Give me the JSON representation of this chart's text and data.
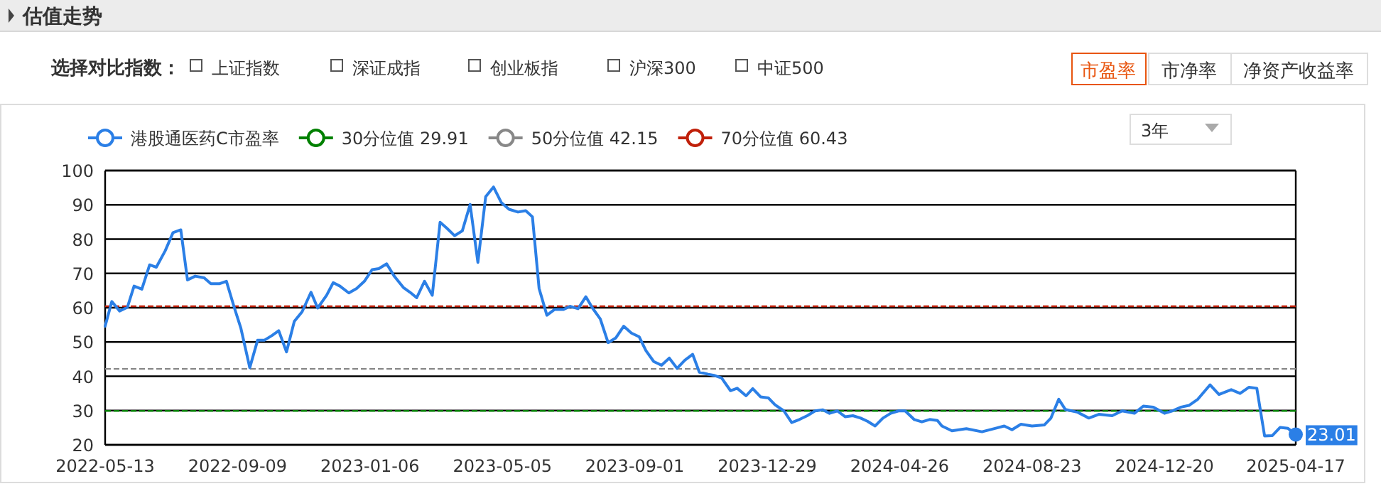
{
  "chart_data": {
    "type": "line",
    "title": "估值走势",
    "annotations": [
      "选择对比指数：",
      "上证指数",
      "深证成指",
      "创业板指",
      "沪深300",
      "中证500",
      "市盈率",
      "市净率",
      "净资产收益率",
      "3年"
    ],
    "x": [
      "2022-05-13",
      "2022-05-19",
      "2022-05-26",
      "2022-06-02",
      "2022-06-08",
      "2022-06-15",
      "2022-06-22",
      "2022-06-28",
      "2022-07-06",
      "2022-07-13",
      "2022-07-20",
      "2022-07-26",
      "2022-08-02",
      "2022-08-10",
      "2022-08-16",
      "2022-08-24",
      "2022-08-30",
      "2022-09-06",
      "2022-09-12",
      "2022-09-20",
      "2022-09-27",
      "2022-10-03",
      "2022-10-10",
      "2022-10-16",
      "2022-10-23",
      "2022-10-30",
      "2022-11-06",
      "2022-11-14",
      "2022-11-20",
      "2022-11-28",
      "2022-12-04",
      "2022-12-10",
      "2022-12-18",
      "2022-12-25",
      "2023-01-01",
      "2023-01-08",
      "2023-01-14",
      "2023-01-21",
      "2023-01-28",
      "2023-02-05",
      "2023-02-11",
      "2023-02-17",
      "2023-02-24",
      "2023-03-03",
      "2023-03-10",
      "2023-03-16",
      "2023-03-23",
      "2023-03-30",
      "2023-04-06",
      "2023-04-13",
      "2023-04-20",
      "2023-04-27",
      "2023-05-04",
      "2023-05-11",
      "2023-05-19",
      "2023-05-26",
      "2023-06-01",
      "2023-06-07",
      "2023-06-14",
      "2023-06-21",
      "2023-06-29",
      "2023-07-05",
      "2023-07-12",
      "2023-07-19",
      "2023-07-25",
      "2023-08-01",
      "2023-08-08",
      "2023-08-15",
      "2023-08-22",
      "2023-08-29",
      "2023-09-05",
      "2023-09-11",
      "2023-09-18",
      "2023-09-25",
      "2023-10-02",
      "2023-10-09",
      "2023-10-16",
      "2023-10-23",
      "2023-10-29",
      "2023-11-06",
      "2023-11-12",
      "2023-11-18",
      "2023-11-26",
      "2023-12-02",
      "2023-12-10",
      "2023-12-16",
      "2023-12-23",
      "2023-12-30",
      "2024-01-05",
      "2024-01-13",
      "2024-01-20",
      "2024-01-27",
      "2024-02-03",
      "2024-02-10",
      "2024-02-17",
      "2024-02-23",
      "2024-03-01",
      "2024-03-08",
      "2024-03-15",
      "2024-03-22",
      "2024-03-28",
      "2024-04-04",
      "2024-04-11",
      "2024-04-18",
      "2024-04-25",
      "2024-05-01",
      "2024-05-09",
      "2024-05-16",
      "2024-05-23",
      "2024-05-30",
      "2024-06-03",
      "2024-06-12",
      "2024-06-25",
      "2024-07-09",
      "2024-07-22",
      "2024-07-29",
      "2024-08-05",
      "2024-08-13",
      "2024-08-23",
      "2024-09-03",
      "2024-09-09",
      "2024-09-16",
      "2024-09-22",
      "2024-10-03",
      "2024-10-13",
      "2024-10-22",
      "2024-11-03",
      "2024-11-12",
      "2024-11-23",
      "2024-12-01",
      "2024-12-10",
      "2024-12-20",
      "2024-12-27",
      "2025-01-04",
      "2025-01-11",
      "2025-01-19",
      "2025-01-30",
      "2025-02-07",
      "2025-02-18",
      "2025-02-26",
      "2025-03-06",
      "2025-03-13",
      "2025-03-20",
      "2025-03-27",
      "2025-04-03",
      "2025-04-10",
      "2025-04-17"
    ],
    "series": [
      {
        "name": "港股通医药C市盈率",
        "color": "#2b7fe6",
        "values": [
          54.6,
          61.8,
          59.0,
          60.1,
          66.3,
          65.4,
          72.5,
          71.8,
          76.6,
          81.9,
          82.7,
          68.1,
          69.2,
          68.7,
          67.0,
          67.0,
          67.7,
          60.1,
          54.0,
          42.5,
          50.5,
          50.5,
          51.9,
          53.3,
          47.1,
          56.0,
          58.8,
          64.5,
          59.9,
          63.6,
          67.3,
          66.3,
          64.3,
          65.6,
          67.7,
          71.1,
          71.4,
          72.8,
          69.1,
          65.9,
          64.5,
          62.9,
          67.7,
          63.6,
          84.9,
          83.2,
          81.0,
          82.4,
          90.1,
          73.2,
          92.4,
          95.2,
          90.7,
          88.7,
          87.9,
          88.3,
          86.5,
          65.6,
          57.8,
          59.5,
          59.5,
          60.4,
          59.7,
          63.2,
          59.9,
          56.7,
          49.8,
          51.2,
          54.6,
          52.6,
          51.5,
          47.5,
          44.3,
          43.2,
          45.3,
          42.3,
          44.7,
          46.4,
          41.2,
          40.6,
          40.2,
          39.5,
          35.8,
          36.5,
          34.3,
          36.4,
          34.0,
          33.7,
          31.7,
          29.9,
          26.5,
          27.4,
          28.5,
          29.9,
          30.2,
          29.2,
          29.9,
          28.2,
          28.5,
          27.8,
          26.9,
          25.5,
          27.8,
          29.2,
          29.9,
          29.9,
          27.4,
          26.7,
          27.4,
          27.1,
          25.5,
          24.1,
          24.7,
          23.8,
          24.9,
          25.5,
          24.4,
          26.0,
          25.5,
          25.8,
          27.8,
          33.3,
          30.3,
          29.5,
          27.8,
          28.9,
          28.5,
          29.9,
          29.2,
          31.3,
          31.0,
          29.2,
          29.9,
          31.0,
          31.5,
          33.3,
          37.5,
          34.7,
          36.1,
          35.0,
          36.8,
          36.5,
          22.6,
          22.7,
          25.1,
          24.8,
          23.01
        ],
        "value_labels": [
          null,
          null,
          null,
          null,
          null,
          null,
          null,
          null,
          null,
          null,
          null,
          null,
          null,
          null,
          null,
          null,
          null,
          null,
          null,
          null,
          null,
          null,
          null,
          null,
          null,
          null,
          null,
          null,
          null,
          null,
          null,
          null,
          null,
          null,
          null,
          null,
          null,
          null,
          null,
          null,
          null,
          null,
          null,
          null,
          null,
          null,
          null,
          null,
          null,
          null,
          null,
          null,
          null,
          null,
          null,
          null,
          null,
          null,
          null,
          null,
          null,
          null,
          null,
          null,
          null,
          null,
          null,
          null,
          null,
          null,
          null,
          null,
          null,
          null,
          null,
          null,
          null,
          null,
          null,
          null,
          null,
          null,
          null,
          null,
          null,
          null,
          null,
          null,
          null,
          null,
          null,
          null,
          null,
          null,
          null,
          null,
          null,
          null,
          null,
          null,
          null,
          null,
          null,
          null,
          null,
          null,
          null,
          null,
          null,
          null,
          null,
          null,
          null,
          null,
          null,
          null,
          null,
          null,
          null,
          null,
          null,
          null,
          null,
          null,
          null,
          null,
          null,
          null,
          null,
          null,
          null,
          null,
          null,
          null,
          null,
          null,
          null,
          null,
          null,
          null,
          null,
          null,
          null,
          null,
          null,
          null,
          "23.01"
        ]
      }
    ],
    "ref_lines": [
      {
        "axis": "y",
        "value": 29.91,
        "label": "30分位值 29.91",
        "color": "#008000",
        "line_style": "dashed"
      },
      {
        "axis": "y",
        "value": 42.15,
        "label": "50分位值 42.15",
        "color": "#888888",
        "line_style": "dashed"
      },
      {
        "axis": "y",
        "value": 60.43,
        "label": "70分位值 60.43",
        "color": "#c0200a",
        "line_style": "dashed"
      }
    ],
    "xlim": [
      "2022-05-13",
      "2025-04-17"
    ],
    "xticks": [
      "2022-05-13",
      "2022-09-09",
      "2023-01-06",
      "2023-05-05",
      "2023-09-01",
      "2023-12-29",
      "2024-04-26",
      "2024-08-23",
      "2024-12-20",
      "2025-04-17"
    ],
    "ylim": [
      20,
      100
    ],
    "yticks": [
      20,
      30,
      40,
      50,
      60,
      70,
      80,
      90,
      100
    ],
    "grid": "y",
    "legend": "top left"
  }
}
